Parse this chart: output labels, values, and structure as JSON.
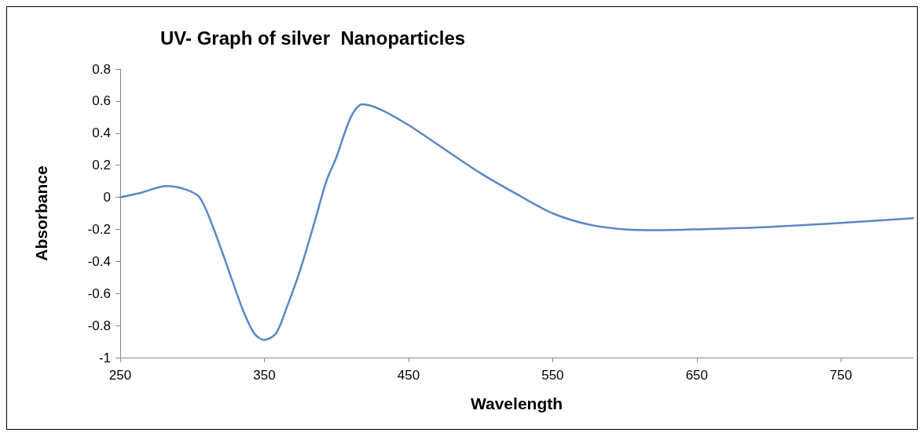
{
  "chart_data": {
    "type": "line",
    "title": "UV- Graph of silver  Nanoparticles",
    "xlabel": "Wavelength",
    "ylabel": "Absorbance",
    "x": [
      250,
      265,
      282,
      295,
      305,
      315,
      325,
      335,
      343,
      350,
      358,
      365,
      375,
      385,
      393,
      400,
      410,
      418,
      430,
      450,
      475,
      500,
      525,
      550,
      575,
      600,
      625,
      650,
      700,
      750,
      800
    ],
    "series": [
      {
        "color": "#5b87c5",
        "values": [
          0,
          0.03,
          0.07,
          0.05,
          0,
          -0.2,
          -0.45,
          -0.7,
          -0.85,
          -0.89,
          -0.85,
          -0.7,
          -0.45,
          -0.15,
          0.1,
          0.25,
          0.5,
          0.58,
          0.55,
          0.45,
          0.3,
          0.15,
          0.02,
          -0.1,
          -0.17,
          -0.2,
          -0.205,
          -0.2,
          -0.185,
          -0.16,
          -0.13
        ]
      }
    ],
    "xlim": [
      250,
      800
    ],
    "xticks": [
      250,
      350,
      450,
      550,
      650,
      750
    ],
    "ylim": [
      -1,
      0.8
    ],
    "yticks": [
      -1,
      -0.8,
      -0.6,
      -0.4,
      -0.2,
      0,
      0.2,
      0.4,
      0.6,
      0.8
    ],
    "grid": false,
    "marker": "none",
    "line_style": "solid"
  }
}
